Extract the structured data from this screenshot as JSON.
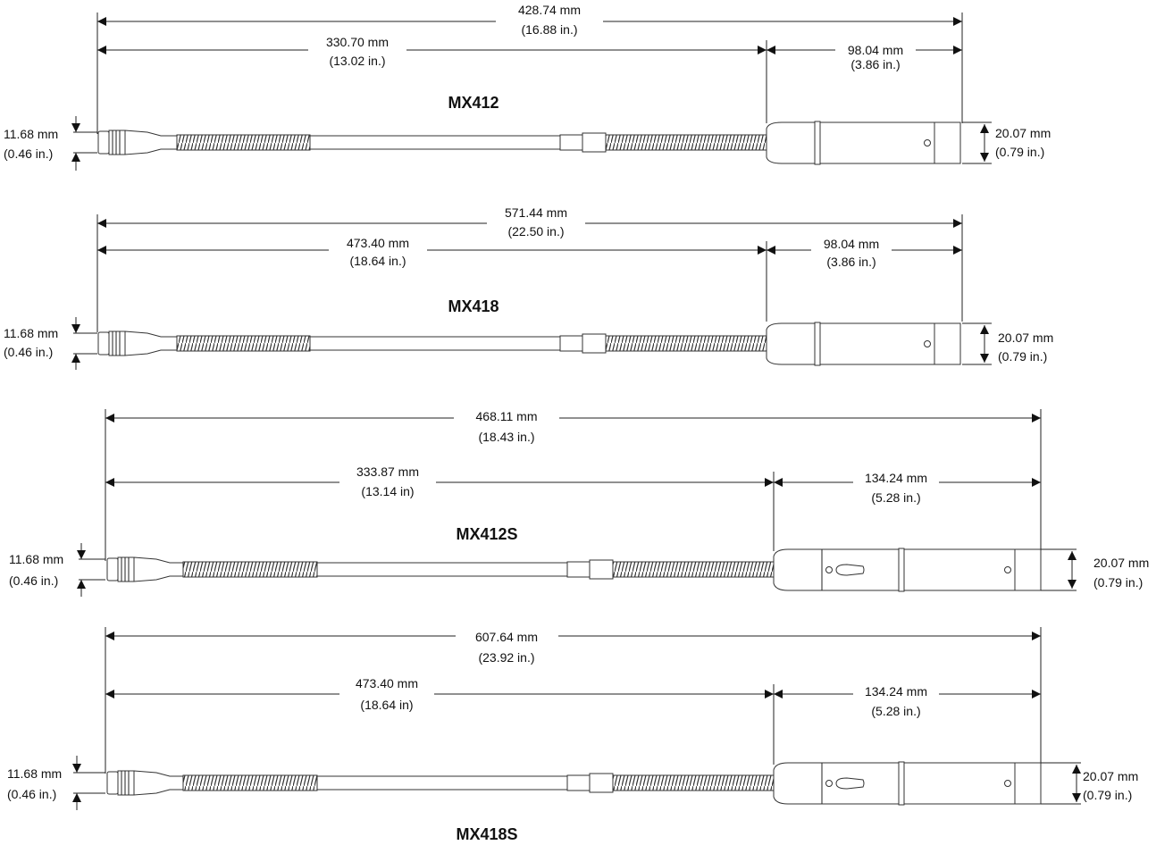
{
  "drawings": [
    {
      "model": "MX412",
      "overall": {
        "mm": "428.74 mm",
        "in": "(16.88 in.)"
      },
      "gooseneck": {
        "mm": "330.70 mm",
        "in": "(13.02 in.)"
      },
      "base": {
        "mm": "98.04 mm",
        "in": "(3.86 in.)"
      },
      "head_dia": {
        "mm": "11.68 mm",
        "in": "(0.46 in.)"
      },
      "base_dia": {
        "mm": "20.07 mm",
        "in": "(0.79 in.)"
      }
    },
    {
      "model": "MX418",
      "overall": {
        "mm": "571.44 mm",
        "in": "(22.50 in.)"
      },
      "gooseneck": {
        "mm": "473.40 mm",
        "in": "(18.64 in.)"
      },
      "base": {
        "mm": "98.04 mm",
        "in": "(3.86 in.)"
      },
      "head_dia": {
        "mm": "11.68 mm",
        "in": "(0.46 in.)"
      },
      "base_dia": {
        "mm": "20.07 mm",
        "in": "(0.79 in.)"
      }
    },
    {
      "model": "MX412S",
      "overall": {
        "mm": "468.11 mm",
        "in": "(18.43 in.)"
      },
      "gooseneck": {
        "mm": "333.87 mm",
        "in": "(13.14 in)"
      },
      "base": {
        "mm": "134.24 mm",
        "in": "(5.28 in.)"
      },
      "head_dia": {
        "mm": "11.68 mm",
        "in": "(0.46 in.)"
      },
      "base_dia": {
        "mm": "20.07 mm",
        "in": "(0.79 in.)"
      }
    },
    {
      "model": "MX418S",
      "overall": {
        "mm": "607.64 mm",
        "in": "(23.92 in.)"
      },
      "gooseneck": {
        "mm": "473.40 mm",
        "in": "(18.64 in)"
      },
      "base": {
        "mm": "134.24 mm",
        "in": "(5.28 in.)"
      },
      "head_dia": {
        "mm": "11.68 mm",
        "in": "(0.46 in.)"
      },
      "base_dia": {
        "mm": "20.07 mm",
        "in": "(0.79 in.)"
      }
    }
  ]
}
